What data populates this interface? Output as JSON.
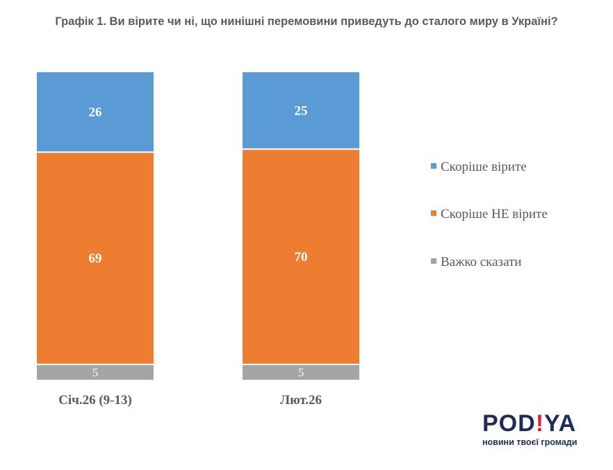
{
  "title": "Графік 1. Ви вірите чи ні, що нинішні перемовини приведуть до сталого миру в Україні?",
  "chart_data": {
    "type": "bar",
    "stacked": true,
    "categories": [
      "Січ.26 (9-13)",
      "Лют.26"
    ],
    "series": [
      {
        "name": "Скоріше вірите",
        "values": [
          26,
          25
        ],
        "color": "#5b9bd5"
      },
      {
        "name": "Скоріше НЕ вірите",
        "values": [
          69,
          70
        ],
        "color": "#ed7d31"
      },
      {
        "name": "Важко сказати",
        "values": [
          5,
          5
        ],
        "color": "#a5a5a5"
      }
    ],
    "ylim": [
      0,
      100
    ],
    "legend": "right"
  },
  "logo": {
    "word_left": "POD",
    "word_excl": "!",
    "word_right": "YA",
    "tagline": "новини твоєї громади"
  }
}
